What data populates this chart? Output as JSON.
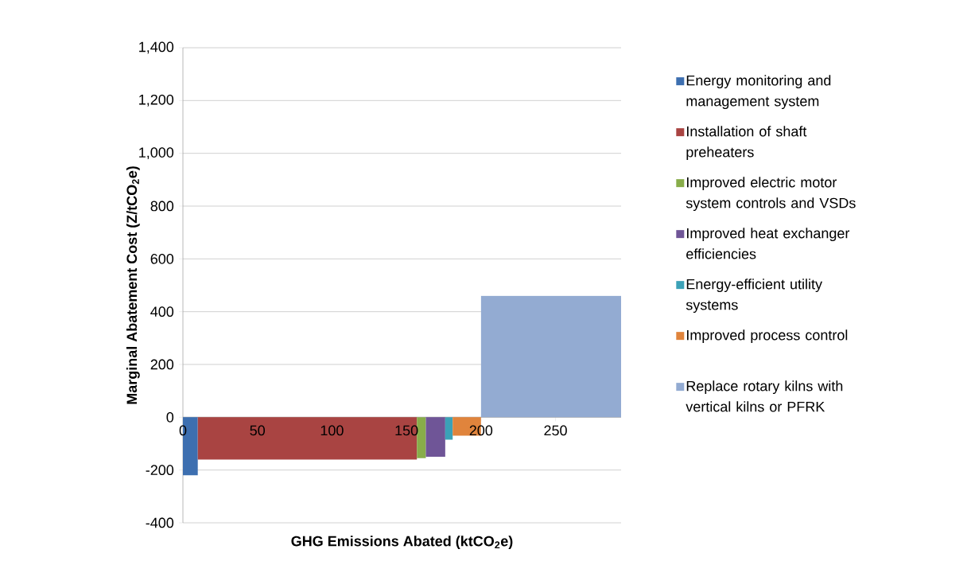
{
  "chart_data": {
    "type": "area",
    "xlabel": "GHG  Emissions Abated (ktCO$_{2}$e)",
    "ylabel": "Marginal Abatement Cost (Z/tCO$_{2}$e)",
    "xlim": [
      0,
      294
    ],
    "ylim": [
      -400,
      1400
    ],
    "xticks": [
      0,
      50,
      100,
      150,
      200,
      250
    ],
    "yticks": [
      {
        "value": -400,
        "label": "-400"
      },
      {
        "value": -200,
        "label": "-200"
      },
      0,
      200,
      400,
      600,
      800,
      {
        "value": 1000,
        "label": "1,000"
      },
      {
        "value": 1200,
        "label": "1,200"
      },
      {
        "value": 1400,
        "label": "1,400"
      }
    ],
    "grid": "y",
    "legend": "right",
    "series": [
      {
        "name": "Energy monitoring and management system",
        "color": "#3d6fb0",
        "x": [
          0,
          10
        ],
        "values": [
          -220,
          -220
        ]
      },
      {
        "name": "Installation of shaft preheaters",
        "color": "#a94442",
        "x": [
          10,
          157
        ],
        "values": [
          -160,
          -160
        ]
      },
      {
        "name": "Improved electric motor system controls and VSDs",
        "color": "#88ad4a",
        "x": [
          157,
          163
        ],
        "values": [
          -155,
          -155
        ]
      },
      {
        "name": "Improved heat exchanger efficiencies",
        "color": "#6f5597",
        "x": [
          163,
          176
        ],
        "values": [
          -150,
          -150
        ]
      },
      {
        "name": "Energy-efficient utility systems",
        "color": "#3ba1b7",
        "x": [
          176,
          181
        ],
        "values": [
          -85,
          -85
        ]
      },
      {
        "name": "Improved process control",
        "color": "#e0843c",
        "x": [
          181,
          200
        ],
        "values": [
          -70,
          -70
        ]
      },
      {
        "name": "Replace rotary kilns with vertical kilns or PFRK",
        "color": "#93abd2",
        "x": [
          200,
          294
        ],
        "values": [
          460,
          460
        ]
      }
    ]
  }
}
